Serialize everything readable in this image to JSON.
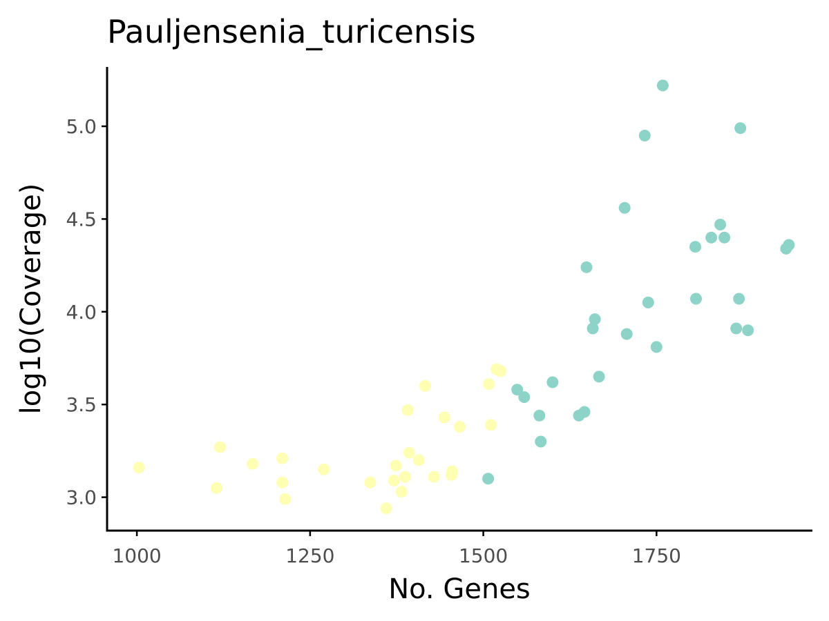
{
  "chart_data": {
    "type": "scatter",
    "title": "Pauljensenia_turicensis",
    "xlabel": "No. Genes",
    "ylabel": "log10(Coverage)",
    "xlim": [
      957,
      1975
    ],
    "ylim": [
      2.82,
      5.32
    ],
    "x_ticks": [
      1000,
      1250,
      1500,
      1750
    ],
    "x_tick_labels": [
      "1000",
      "1250",
      "1500",
      "1750"
    ],
    "y_ticks": [
      3.0,
      3.5,
      4.0,
      4.5,
      5.0
    ],
    "y_tick_labels": [
      "3.0",
      "3.5",
      "4.0",
      "4.5",
      "5.0"
    ],
    "grid": false,
    "legend": "none",
    "series": [
      {
        "color": "#ffffb3",
        "points": [
          [
            1003,
            3.16
          ],
          [
            1115,
            3.05
          ],
          [
            1120,
            3.27
          ],
          [
            1167,
            3.18
          ],
          [
            1210,
            3.21
          ],
          [
            1210,
            3.08
          ],
          [
            1214,
            2.99
          ],
          [
            1270,
            3.15
          ],
          [
            1337,
            3.08
          ],
          [
            1360,
            2.94
          ],
          [
            1371,
            3.09
          ],
          [
            1374,
            3.17
          ],
          [
            1382,
            3.03
          ],
          [
            1387,
            3.11
          ],
          [
            1391,
            3.47
          ],
          [
            1393,
            3.24
          ],
          [
            1407,
            3.2
          ],
          [
            1416,
            3.6
          ],
          [
            1429,
            3.11
          ],
          [
            1444,
            3.43
          ],
          [
            1454,
            3.12
          ],
          [
            1455,
            3.14
          ],
          [
            1466,
            3.38
          ],
          [
            1508,
            3.61
          ],
          [
            1511,
            3.39
          ],
          [
            1519,
            3.69
          ],
          [
            1525,
            3.68
          ]
        ]
      },
      {
        "color": "#8dd3c7",
        "points": [
          [
            1507,
            3.1
          ],
          [
            1549,
            3.58
          ],
          [
            1559,
            3.54
          ],
          [
            1581,
            3.44
          ],
          [
            1583,
            3.3
          ],
          [
            1600,
            3.62
          ],
          [
            1638,
            3.44
          ],
          [
            1646,
            3.46
          ],
          [
            1649,
            4.24
          ],
          [
            1658,
            3.91
          ],
          [
            1661,
            3.96
          ],
          [
            1667,
            3.65
          ],
          [
            1704,
            4.56
          ],
          [
            1707,
            3.88
          ],
          [
            1733,
            4.95
          ],
          [
            1738,
            4.05
          ],
          [
            1750,
            3.81
          ],
          [
            1759,
            5.22
          ],
          [
            1806,
            4.35
          ],
          [
            1807,
            4.07
          ],
          [
            1829,
            4.4
          ],
          [
            1842,
            4.47
          ],
          [
            1848,
            4.4
          ],
          [
            1865,
            3.91
          ],
          [
            1869,
            4.07
          ],
          [
            1871,
            4.99
          ],
          [
            1882,
            3.9
          ],
          [
            1937,
            4.34
          ],
          [
            1941,
            4.36
          ]
        ]
      }
    ]
  }
}
